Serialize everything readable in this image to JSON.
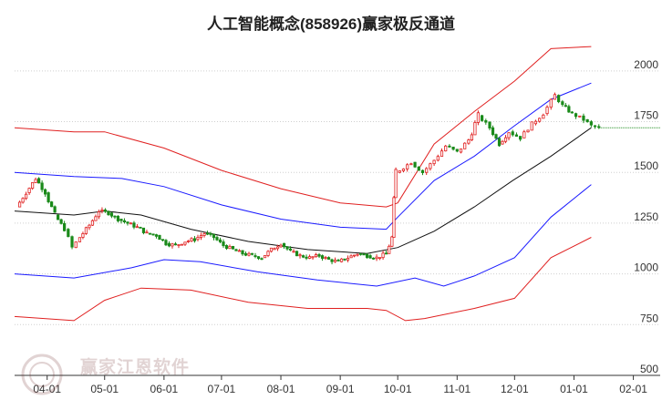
{
  "chart_data": {
    "type": "line",
    "title": "人工智能概念(858926)赢家极反通道",
    "xlabel": "",
    "ylabel": "",
    "x_ticks": [
      "04-01",
      "05-01",
      "06-01",
      "07-01",
      "08-01",
      "09-01",
      "10-01",
      "11-01",
      "12-01",
      "01-01",
      "02-01"
    ],
    "y_ticks": [
      500,
      750,
      1000,
      1250,
      1500,
      1750,
      2000
    ],
    "ylim": [
      500,
      2170
    ],
    "xlim": [
      "03-15",
      "02-15"
    ],
    "grid": "horizontal",
    "series": [
      {
        "role": "price-candles",
        "color_up": "#e02020",
        "color_down": "#1a8a1a",
        "points": [
          [
            "03-16",
            1330
          ],
          [
            "03-21",
            1400
          ],
          [
            "03-26",
            1470
          ],
          [
            "03-31",
            1400
          ],
          [
            "04-05",
            1290
          ],
          [
            "04-10",
            1220
          ],
          [
            "04-14",
            1130
          ],
          [
            "04-18",
            1180
          ],
          [
            "04-23",
            1240
          ],
          [
            "04-28",
            1310
          ],
          [
            "05-03",
            1300
          ],
          [
            "05-08",
            1270
          ],
          [
            "05-13",
            1250
          ],
          [
            "05-18",
            1230
          ],
          [
            "05-23",
            1200
          ],
          [
            "05-28",
            1190
          ],
          [
            "06-02",
            1150
          ],
          [
            "06-07",
            1140
          ],
          [
            "06-12",
            1160
          ],
          [
            "06-17",
            1170
          ],
          [
            "06-22",
            1200
          ],
          [
            "06-27",
            1180
          ],
          [
            "07-02",
            1140
          ],
          [
            "07-07",
            1120
          ],
          [
            "07-12",
            1100
          ],
          [
            "07-17",
            1090
          ],
          [
            "07-22",
            1080
          ],
          [
            "07-27",
            1120
          ],
          [
            "08-01",
            1150
          ],
          [
            "08-06",
            1110
          ],
          [
            "08-11",
            1090
          ],
          [
            "08-16",
            1080
          ],
          [
            "08-21",
            1090
          ],
          [
            "08-26",
            1070
          ],
          [
            "08-31",
            1060
          ],
          [
            "09-05",
            1080
          ],
          [
            "09-10",
            1100
          ],
          [
            "09-15",
            1090
          ],
          [
            "09-20",
            1080
          ],
          [
            "09-25",
            1100
          ],
          [
            "09-28",
            1180
          ],
          [
            "09-30",
            1500
          ],
          [
            "10-08",
            1550
          ],
          [
            "10-14",
            1500
          ],
          [
            "10-20",
            1560
          ],
          [
            "10-26",
            1630
          ],
          [
            "11-01",
            1600
          ],
          [
            "11-07",
            1660
          ],
          [
            "11-12",
            1780
          ],
          [
            "11-18",
            1720
          ],
          [
            "11-23",
            1640
          ],
          [
            "11-28",
            1700
          ],
          [
            "12-04",
            1670
          ],
          [
            "12-10",
            1740
          ],
          [
            "12-16",
            1790
          ],
          [
            "12-22",
            1880
          ],
          [
            "12-26",
            1830
          ],
          [
            "12-31",
            1790
          ],
          [
            "01-06",
            1760
          ],
          [
            "01-10",
            1730
          ],
          [
            "01-14",
            1720
          ]
        ]
      },
      {
        "role": "middle-band",
        "color": "#111111",
        "points": [
          [
            "03-15",
            1310
          ],
          [
            "04-15",
            1290
          ],
          [
            "05-01",
            1310
          ],
          [
            "05-20",
            1290
          ],
          [
            "06-15",
            1220
          ],
          [
            "07-15",
            1160
          ],
          [
            "08-15",
            1120
          ],
          [
            "09-15",
            1100
          ],
          [
            "10-01",
            1130
          ],
          [
            "10-20",
            1210
          ],
          [
            "11-10",
            1330
          ],
          [
            "11-30",
            1460
          ],
          [
            "12-20",
            1580
          ],
          [
            "01-10",
            1720
          ]
        ]
      },
      {
        "role": "inner-upper-band",
        "color": "#1a1aff",
        "points": [
          [
            "03-15",
            1500
          ],
          [
            "04-15",
            1480
          ],
          [
            "05-10",
            1470
          ],
          [
            "06-01",
            1430
          ],
          [
            "07-01",
            1340
          ],
          [
            "08-01",
            1270
          ],
          [
            "09-01",
            1230
          ],
          [
            "09-25",
            1220
          ],
          [
            "10-01",
            1280
          ],
          [
            "10-20",
            1460
          ],
          [
            "11-10",
            1580
          ],
          [
            "12-01",
            1730
          ],
          [
            "12-20",
            1860
          ],
          [
            "01-10",
            1940
          ]
        ]
      },
      {
        "role": "inner-lower-band",
        "color": "#1a1aff",
        "points": [
          [
            "03-15",
            1000
          ],
          [
            "04-15",
            980
          ],
          [
            "05-15",
            1030
          ],
          [
            "06-01",
            1070
          ],
          [
            "06-20",
            1060
          ],
          [
            "07-20",
            1010
          ],
          [
            "08-20",
            970
          ],
          [
            "09-20",
            940
          ],
          [
            "10-10",
            980
          ],
          [
            "10-25",
            940
          ],
          [
            "11-10",
            990
          ],
          [
            "12-01",
            1080
          ],
          [
            "12-20",
            1280
          ],
          [
            "01-10",
            1440
          ]
        ]
      },
      {
        "role": "outer-upper-band",
        "color": "#e02020",
        "points": [
          [
            "03-15",
            1720
          ],
          [
            "04-15",
            1700
          ],
          [
            "05-01",
            1700
          ],
          [
            "06-01",
            1620
          ],
          [
            "07-01",
            1510
          ],
          [
            "08-01",
            1420
          ],
          [
            "09-01",
            1350
          ],
          [
            "09-25",
            1330
          ],
          [
            "10-01",
            1350
          ],
          [
            "10-20",
            1640
          ],
          [
            "11-10",
            1800
          ],
          [
            "12-01",
            1950
          ],
          [
            "12-20",
            2110
          ],
          [
            "01-10",
            2120
          ]
        ]
      },
      {
        "role": "outer-lower-band",
        "color": "#e02020",
        "points": [
          [
            "03-15",
            790
          ],
          [
            "04-15",
            770
          ],
          [
            "05-01",
            870
          ],
          [
            "05-20",
            930
          ],
          [
            "06-15",
            920
          ],
          [
            "07-15",
            860
          ],
          [
            "08-15",
            830
          ],
          [
            "09-15",
            830
          ],
          [
            "09-25",
            820
          ],
          [
            "10-05",
            770
          ],
          [
            "10-15",
            780
          ],
          [
            "11-10",
            830
          ],
          [
            "12-01",
            880
          ],
          [
            "12-20",
            1080
          ],
          [
            "01-10",
            1180
          ]
        ]
      }
    ],
    "last_value_line": {
      "value": 1720,
      "from": "01-14",
      "to": "02-15",
      "color": "#1a8a1a"
    }
  },
  "watermark": {
    "text": "赢家江恩软件"
  }
}
